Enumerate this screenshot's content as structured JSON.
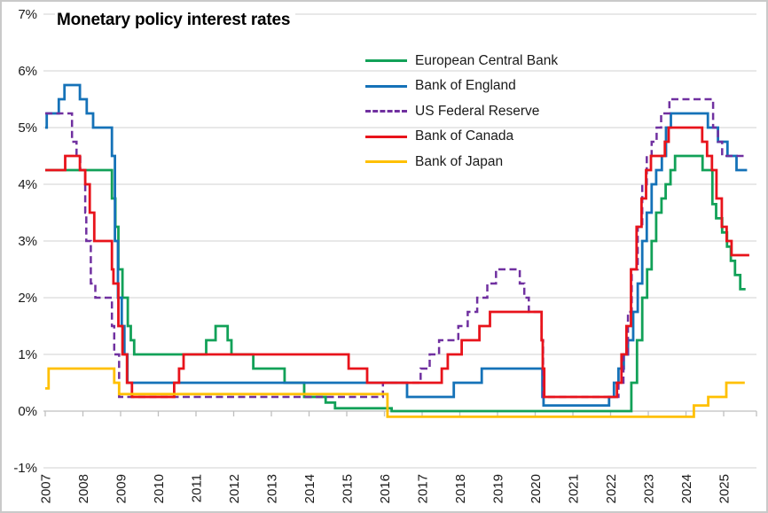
{
  "chart_data": {
    "type": "line",
    "subtype": "step-after",
    "title": "Monetary policy interest rates",
    "xlabel": "",
    "ylabel": "",
    "ylim": [
      -1,
      7
    ],
    "xlim": [
      2007,
      2025.87
    ],
    "grid": "horizontal",
    "legend_position": "top-right-inside",
    "y_tick_labels": [
      "7%",
      "6%",
      "5%",
      "4%",
      "3%",
      "2%",
      "1%",
      "0%",
      "-1%"
    ],
    "x_tick_labels": [
      "2007",
      "2008",
      "2009",
      "2010",
      "2011",
      "2012",
      "2013",
      "2014",
      "2015",
      "2016",
      "2017",
      "2018",
      "2019",
      "2020",
      "2021",
      "2022",
      "2023",
      "2024",
      "2025"
    ],
    "axis_color": "#bfbfbf",
    "grid_color": "#d9d9d9",
    "series": [
      {
        "name": "European Central Bank",
        "color": "#12a158",
        "dash": false,
        "points": [
          [
            2007.0,
            4.25
          ],
          [
            2008.77,
            3.75
          ],
          [
            2008.86,
            3.25
          ],
          [
            2008.94,
            2.5
          ],
          [
            2009.05,
            2.0
          ],
          [
            2009.19,
            1.5
          ],
          [
            2009.27,
            1.25
          ],
          [
            2009.36,
            1.0
          ],
          [
            2011.27,
            1.25
          ],
          [
            2011.52,
            1.5
          ],
          [
            2011.84,
            1.25
          ],
          [
            2011.94,
            1.0
          ],
          [
            2012.52,
            0.75
          ],
          [
            2013.35,
            0.5
          ],
          [
            2013.87,
            0.25
          ],
          [
            2014.44,
            0.15
          ],
          [
            2014.69,
            0.05
          ],
          [
            2016.19,
            0.0
          ],
          [
            2022.55,
            0.5
          ],
          [
            2022.7,
            1.25
          ],
          [
            2022.84,
            2.0
          ],
          [
            2022.97,
            2.5
          ],
          [
            2023.09,
            3.0
          ],
          [
            2023.21,
            3.5
          ],
          [
            2023.35,
            3.75
          ],
          [
            2023.46,
            4.0
          ],
          [
            2023.59,
            4.25
          ],
          [
            2023.71,
            4.5
          ],
          [
            2024.44,
            4.25
          ],
          [
            2024.7,
            3.65
          ],
          [
            2024.8,
            3.4
          ],
          [
            2024.96,
            3.15
          ],
          [
            2025.09,
            2.9
          ],
          [
            2025.19,
            2.65
          ],
          [
            2025.3,
            2.4
          ],
          [
            2025.44,
            2.15
          ],
          [
            2025.58,
            2.15
          ]
        ]
      },
      {
        "name": "Bank of England",
        "color": "#1572b8",
        "dash": false,
        "points": [
          [
            2007.0,
            5.0
          ],
          [
            2007.04,
            5.25
          ],
          [
            2007.36,
            5.5
          ],
          [
            2007.51,
            5.75
          ],
          [
            2007.92,
            5.5
          ],
          [
            2008.1,
            5.25
          ],
          [
            2008.27,
            5.0
          ],
          [
            2008.77,
            4.5
          ],
          [
            2008.85,
            3.0
          ],
          [
            2008.93,
            2.0
          ],
          [
            2009.03,
            1.5
          ],
          [
            2009.1,
            1.0
          ],
          [
            2009.18,
            0.5
          ],
          [
            2016.6,
            0.25
          ],
          [
            2017.84,
            0.5
          ],
          [
            2018.58,
            0.75
          ],
          [
            2020.19,
            0.25
          ],
          [
            2020.22,
            0.1
          ],
          [
            2021.96,
            0.25
          ],
          [
            2022.09,
            0.5
          ],
          [
            2022.21,
            0.75
          ],
          [
            2022.35,
            1.0
          ],
          [
            2022.46,
            1.25
          ],
          [
            2022.6,
            1.75
          ],
          [
            2022.72,
            2.25
          ],
          [
            2022.84,
            3.0
          ],
          [
            2022.96,
            3.5
          ],
          [
            2023.09,
            4.0
          ],
          [
            2023.21,
            4.25
          ],
          [
            2023.36,
            4.5
          ],
          [
            2023.47,
            5.0
          ],
          [
            2023.6,
            5.25
          ],
          [
            2024.58,
            5.0
          ],
          [
            2024.85,
            4.75
          ],
          [
            2025.1,
            4.5
          ],
          [
            2025.34,
            4.25
          ],
          [
            2025.62,
            4.25
          ]
        ]
      },
      {
        "name": "US Federal Reserve",
        "color": "#7030a0",
        "dash": true,
        "points": [
          [
            2007.0,
            5.25
          ],
          [
            2007.71,
            4.75
          ],
          [
            2007.83,
            4.5
          ],
          [
            2007.93,
            4.25
          ],
          [
            2008.06,
            3.5
          ],
          [
            2008.09,
            3.0
          ],
          [
            2008.21,
            2.25
          ],
          [
            2008.33,
            2.0
          ],
          [
            2008.77,
            1.5
          ],
          [
            2008.83,
            1.0
          ],
          [
            2008.96,
            0.25
          ],
          [
            2015.96,
            0.5
          ],
          [
            2016.96,
            0.75
          ],
          [
            2017.2,
            1.0
          ],
          [
            2017.45,
            1.25
          ],
          [
            2017.96,
            1.5
          ],
          [
            2018.21,
            1.75
          ],
          [
            2018.46,
            2.0
          ],
          [
            2018.73,
            2.25
          ],
          [
            2018.96,
            2.5
          ],
          [
            2019.59,
            2.25
          ],
          [
            2019.71,
            2.0
          ],
          [
            2019.83,
            1.75
          ],
          [
            2020.17,
            1.25
          ],
          [
            2020.21,
            0.25
          ],
          [
            2022.21,
            0.5
          ],
          [
            2022.34,
            1.0
          ],
          [
            2022.46,
            1.75
          ],
          [
            2022.56,
            2.5
          ],
          [
            2022.72,
            3.25
          ],
          [
            2022.84,
            4.0
          ],
          [
            2022.96,
            4.5
          ],
          [
            2023.09,
            4.75
          ],
          [
            2023.22,
            5.0
          ],
          [
            2023.34,
            5.25
          ],
          [
            2023.56,
            5.5
          ],
          [
            2024.72,
            5.0
          ],
          [
            2024.85,
            4.75
          ],
          [
            2024.96,
            4.5
          ],
          [
            2025.62,
            4.5
          ]
        ]
      },
      {
        "name": "Bank of Canada",
        "color": "#e8131b",
        "dash": false,
        "points": [
          [
            2007.0,
            4.25
          ],
          [
            2007.53,
            4.5
          ],
          [
            2007.92,
            4.25
          ],
          [
            2008.06,
            4.0
          ],
          [
            2008.18,
            3.5
          ],
          [
            2008.3,
            3.0
          ],
          [
            2008.77,
            2.5
          ],
          [
            2008.81,
            2.25
          ],
          [
            2008.94,
            1.5
          ],
          [
            2009.05,
            1.0
          ],
          [
            2009.17,
            0.5
          ],
          [
            2009.3,
            0.25
          ],
          [
            2010.42,
            0.5
          ],
          [
            2010.55,
            0.75
          ],
          [
            2010.67,
            1.0
          ],
          [
            2015.05,
            0.75
          ],
          [
            2015.54,
            0.5
          ],
          [
            2017.52,
            0.75
          ],
          [
            2017.68,
            1.0
          ],
          [
            2018.05,
            1.25
          ],
          [
            2018.52,
            1.5
          ],
          [
            2018.8,
            1.75
          ],
          [
            2020.17,
            1.25
          ],
          [
            2020.2,
            0.75
          ],
          [
            2020.24,
            0.25
          ],
          [
            2022.17,
            0.5
          ],
          [
            2022.29,
            1.0
          ],
          [
            2022.42,
            1.5
          ],
          [
            2022.54,
            2.5
          ],
          [
            2022.69,
            3.25
          ],
          [
            2022.82,
            3.75
          ],
          [
            2022.94,
            4.25
          ],
          [
            2023.07,
            4.5
          ],
          [
            2023.44,
            4.75
          ],
          [
            2023.54,
            5.0
          ],
          [
            2024.43,
            4.75
          ],
          [
            2024.56,
            4.5
          ],
          [
            2024.69,
            4.25
          ],
          [
            2024.81,
            3.75
          ],
          [
            2024.95,
            3.25
          ],
          [
            2025.08,
            3.0
          ],
          [
            2025.21,
            2.75
          ],
          [
            2025.68,
            2.75
          ]
        ]
      },
      {
        "name": "Bank of Japan",
        "color": "#ffc000",
        "dash": false,
        "points": [
          [
            2007.0,
            0.4
          ],
          [
            2007.09,
            0.75
          ],
          [
            2008.83,
            0.5
          ],
          [
            2008.96,
            0.3
          ],
          [
            2016.08,
            -0.1
          ],
          [
            2024.21,
            0.1
          ],
          [
            2024.59,
            0.25
          ],
          [
            2025.07,
            0.5
          ],
          [
            2025.56,
            0.5
          ]
        ]
      }
    ]
  }
}
